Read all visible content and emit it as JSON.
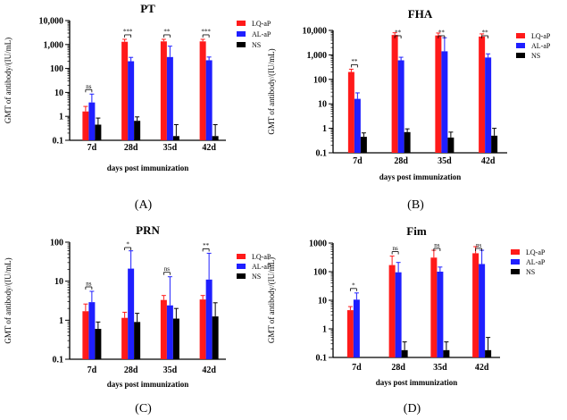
{
  "figure": {
    "colors": {
      "LQ-aP": "#ff1a1a",
      "AL-aP": "#1f1fff",
      "NS": "#000000"
    },
    "panels": [
      {
        "id": "A",
        "panel_label": "(A)",
        "sig_labels": [
          "ns",
          "***",
          "**",
          "***"
        ],
        "chart_data": {
          "type": "bar",
          "title": "PT",
          "xlabel": "days post immunization",
          "ylabel": "GMT of antibody/(IU/mL)",
          "yscale": "log",
          "ylim": [
            0.1,
            10000
          ],
          "ytick_labels": [
            "0.1",
            "1",
            "10",
            "100",
            "1,000",
            "10,000"
          ],
          "categories": [
            "7d",
            "28d",
            "35d",
            "42d"
          ],
          "series": [
            {
              "name": "LQ-aP",
              "values": [
                1.6,
                1300,
                1350,
                1350
              ],
              "err_upper": [
                2.6,
                1650,
                1650,
                1650
              ]
            },
            {
              "name": "AL-aP",
              "values": [
                3.8,
                200,
                300,
                220
              ],
              "err_upper": [
                8.5,
                290,
                850,
                300
              ]
            },
            {
              "name": "NS",
              "values": [
                0.45,
                0.65,
                0.15,
                0.15
              ],
              "err_upper": [
                0.85,
                0.95,
                0.45,
                0.45
              ]
            }
          ]
        }
      },
      {
        "id": "B",
        "panel_label": "(B)",
        "sig_labels": [
          "**",
          "**",
          "**",
          "**"
        ],
        "chart_data": {
          "type": "bar",
          "title": "FHA",
          "xlabel": "days post immunization",
          "ylabel": "GMT of antibody/(IU/mL)",
          "yscale": "log",
          "ylim": [
            0.1,
            10000
          ],
          "ytick_labels": [
            "0.1",
            "1",
            "10",
            "100",
            "1,000",
            "10,000"
          ],
          "categories": [
            "7d",
            "28d",
            "35d",
            "42d"
          ],
          "series": [
            {
              "name": "LQ-aP",
              "values": [
                200,
                6500,
                6200,
                5600
              ],
              "err_upper": [
                260,
                8000,
                7800,
                7200
              ]
            },
            {
              "name": "AL-aP",
              "values": [
                16,
                600,
                1400,
                780
              ],
              "err_upper": [
                28,
                800,
                5000,
                1100
              ]
            },
            {
              "name": "NS",
              "values": [
                0.45,
                0.7,
                0.42,
                0.5
              ],
              "err_upper": [
                0.65,
                0.95,
                0.7,
                1.0
              ]
            }
          ]
        }
      },
      {
        "id": "C",
        "panel_label": "(C)",
        "sig_labels": [
          "ns",
          "*",
          "ns",
          "**"
        ],
        "chart_data": {
          "type": "bar",
          "title": "PRN",
          "xlabel": "days post immunization",
          "ylabel": "GMT of antibody/(IU/mL)",
          "yscale": "log",
          "ylim": [
            0.1,
            100
          ],
          "ytick_labels": [
            "0.1",
            "1",
            "10",
            "100"
          ],
          "categories": [
            "7d",
            "28d",
            "35d",
            "42d"
          ],
          "series": [
            {
              "name": "LQ-aP",
              "values": [
                1.7,
                1.15,
                3.3,
                3.4
              ],
              "err_upper": [
                2.6,
                1.6,
                4.3,
                4.3
              ]
            },
            {
              "name": "AL-aP",
              "values": [
                2.9,
                21,
                2.4,
                11
              ],
              "err_upper": [
                5.5,
                60,
                13,
                52
              ]
            },
            {
              "name": "NS",
              "values": [
                0.6,
                0.9,
                1.1,
                1.25
              ],
              "err_upper": [
                0.9,
                1.5,
                2.0,
                2.8
              ]
            }
          ]
        }
      },
      {
        "id": "D",
        "panel_label": "(D)",
        "sig_labels": [
          "*",
          "ns",
          "ns",
          "ns"
        ],
        "chart_data": {
          "type": "bar",
          "title": "Fim",
          "xlabel": "days post immunization",
          "ylabel": "GMT of antibody/(IU/mL)",
          "yscale": "log",
          "ylim": [
            0.1,
            1000
          ],
          "ytick_labels": [
            "0.1",
            "1",
            "10",
            "100",
            "1000"
          ],
          "categories": [
            "7d",
            "28d",
            "35d",
            "42d"
          ],
          "series": [
            {
              "name": "LQ-aP",
              "values": [
                4.5,
                170,
                310,
                440
              ],
              "err_upper": [
                6.0,
                350,
                560,
                750
              ]
            },
            {
              "name": "AL-aP",
              "values": [
                10.5,
                95,
                100,
                185
              ],
              "err_upper": [
                18,
                210,
                145,
                560
              ]
            },
            {
              "name": "NS",
              "values": [
                null,
                0.18,
                0.18,
                0.18
              ],
              "err_upper": [
                null,
                0.35,
                0.35,
                0.5
              ]
            }
          ]
        }
      }
    ]
  }
}
